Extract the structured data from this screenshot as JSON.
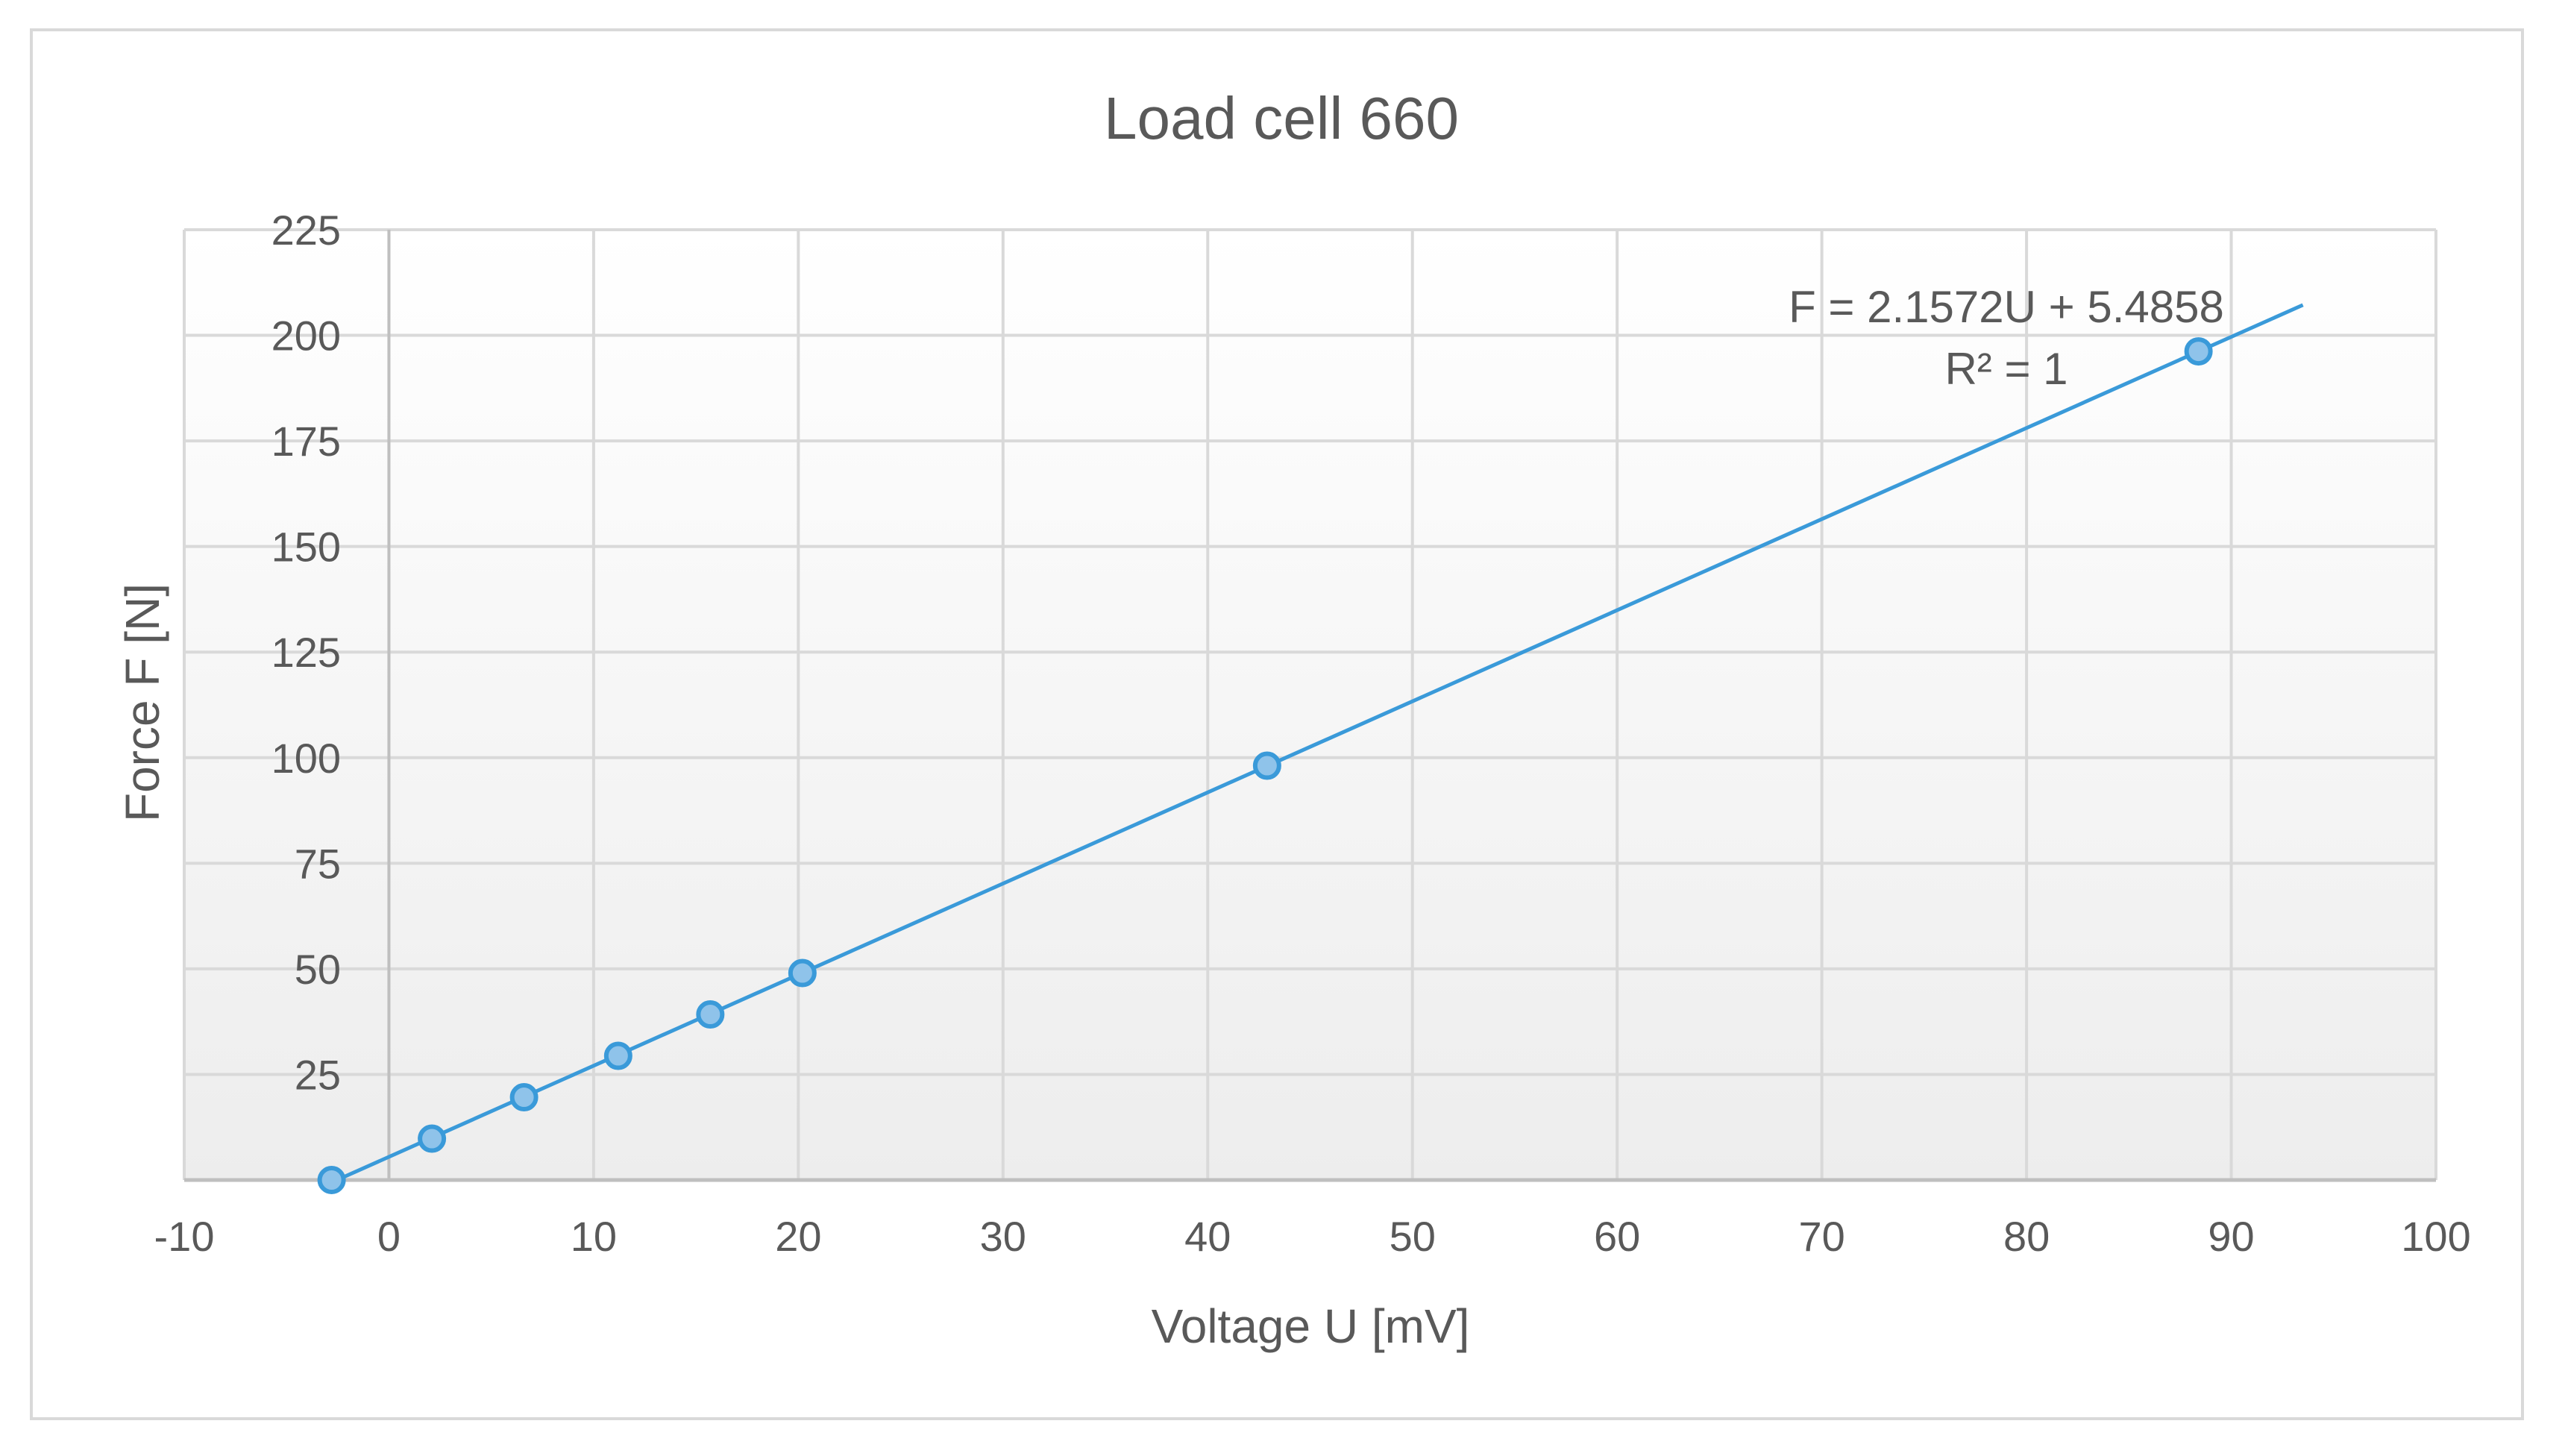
{
  "chart_data": {
    "type": "scatter",
    "title": "Load cell 660",
    "xlabel": "Voltage U [mV]",
    "ylabel": "Force F [N]",
    "xlim": [
      -10,
      100
    ],
    "ylim": [
      0,
      225
    ],
    "x_ticks": [
      -10,
      0,
      10,
      20,
      30,
      40,
      50,
      60,
      70,
      80,
      90,
      100
    ],
    "y_ticks": [
      25,
      50,
      75,
      100,
      125,
      150,
      175,
      200,
      225
    ],
    "grid": true,
    "legend": "none",
    "series": [
      {
        "x": [
          -2.8,
          2.1,
          6.6,
          11.2,
          15.7,
          20.2,
          42.9,
          88.4
        ],
        "y": [
          0,
          9.8,
          19.6,
          29.4,
          39.2,
          49.0,
          98.1,
          196.2
        ],
        "color": "#3a9ad9"
      }
    ],
    "trendline": {
      "slope": 2.1572,
      "intercept": 5.4858,
      "x_range": [
        -2.5,
        93.5
      ],
      "color": "#3a9ad9",
      "equation": "F = 2.1572U + 5.4858",
      "r_squared": "R² = 1"
    },
    "colors": {
      "grid": "#d9d9d9",
      "axis": "#bfbfbf",
      "text": "#595959",
      "title": "#595959",
      "border": "#d9d9d9"
    }
  }
}
